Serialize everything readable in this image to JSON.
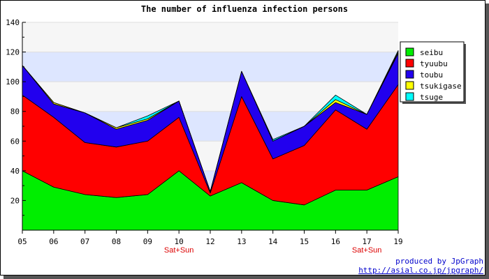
{
  "chart_data": {
    "type": "area",
    "stacked": true,
    "title": "The number of influenza infection persons",
    "xlabel": "",
    "ylabel": "",
    "ylim": [
      0,
      140
    ],
    "yticks": [
      20,
      40,
      60,
      80,
      100,
      120,
      140
    ],
    "categories": [
      "05",
      "06",
      "07",
      "08",
      "09",
      "10",
      "12",
      "13",
      "14",
      "15",
      "16",
      "17",
      "19"
    ],
    "weekend_labels": [
      {
        "category": "10",
        "text": "Sat+Sun"
      },
      {
        "category": "17",
        "text": "Sat+Sun"
      }
    ],
    "series": [
      {
        "name": "seibu",
        "color": "#00ee00",
        "values": [
          40,
          29,
          24,
          22,
          24,
          40,
          23,
          32,
          20,
          17,
          27,
          27,
          36
        ]
      },
      {
        "name": "tyuubu",
        "color": "#ff0000",
        "values": [
          51,
          47,
          35,
          34,
          36,
          36,
          2,
          58,
          28,
          40,
          54,
          41,
          62
        ]
      },
      {
        "name": "toubu",
        "color": "#2200ee",
        "values": [
          20,
          9,
          20,
          12,
          14,
          11,
          1,
          17,
          12,
          13,
          5,
          10,
          21
        ]
      },
      {
        "name": "tsukigase",
        "color": "#ffff00",
        "values": [
          0,
          1,
          0,
          1,
          1,
          0,
          0,
          0,
          0,
          0,
          2,
          0,
          1
        ]
      },
      {
        "name": "tsuge",
        "color": "#00ffff",
        "values": [
          0,
          0,
          0,
          0,
          2,
          0,
          0,
          0,
          1,
          0,
          3,
          0,
          1
        ]
      }
    ],
    "bands": [
      {
        "from": 100,
        "to": 120,
        "color": "#dde6ff"
      },
      {
        "from": 60,
        "to": 80,
        "color": "#dde6ff"
      },
      {
        "from": 20,
        "to": 40,
        "color": "#dde6ff"
      }
    ],
    "legend_position": "right"
  },
  "credit": {
    "line1": "produced by JpGraph",
    "line2": "http://asial.co.jp/jpgraph/"
  }
}
